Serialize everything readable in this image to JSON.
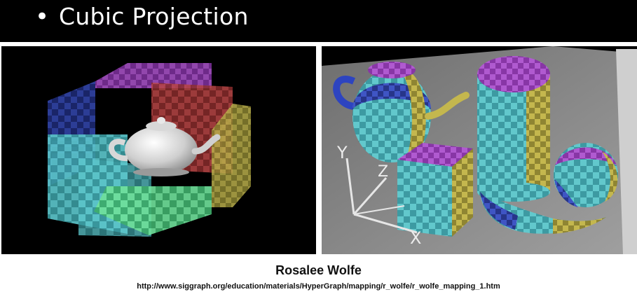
{
  "slide": {
    "bullet": "•",
    "title": "Cubic Projection"
  },
  "caption": {
    "author": "Rosalee Wolfe",
    "url": "http://www.siggraph.org/education/materials/HyperGraph/mapping/r_wolfe/r_wolfe_mapping_1.htm"
  },
  "axes": {
    "x": "X",
    "y": "Y",
    "z": "Z"
  },
  "colors": {
    "purple": "#9b3fb8",
    "blue": "#2e3fa8",
    "cyan": "#4fc4c8",
    "green": "#5fd98a",
    "red": "#b23a3a",
    "yellow": "#b8b04a",
    "floor": "#8c8c8c"
  }
}
